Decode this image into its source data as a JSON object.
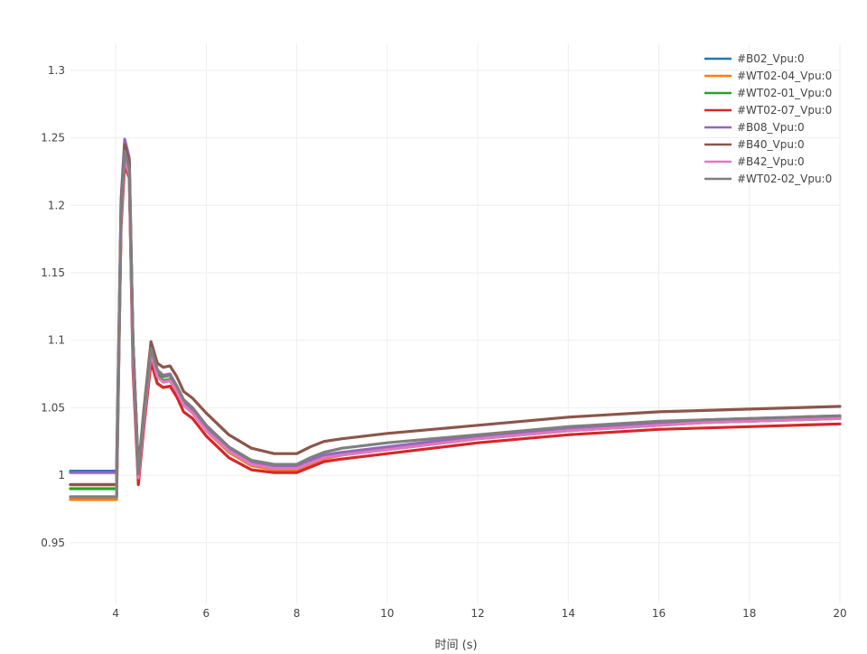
{
  "chart_data": {
    "type": "line",
    "title": "",
    "xlabel": "时间 (s)",
    "ylabel": "",
    "xlim": [
      3,
      20
    ],
    "ylim": [
      0.905,
      1.32
    ],
    "x_ticks": [
      4,
      6,
      8,
      10,
      12,
      14,
      16,
      18,
      20
    ],
    "y_ticks": [
      0.95,
      1,
      1.05,
      1.1,
      1.15,
      1.2,
      1.25,
      1.3
    ],
    "x_tick_labels": [
      "4",
      "6",
      "8",
      "10",
      "12",
      "14",
      "16",
      "18",
      "20"
    ],
    "y_tick_labels": [
      "0.95",
      "1",
      "1.05",
      "1.1",
      "1.15",
      "1.2",
      "1.25",
      "1.3"
    ],
    "grid": true,
    "legend_position": "top-right",
    "x": [
      3.0,
      3.5,
      3.98,
      4.02,
      4.12,
      4.2,
      4.3,
      4.38,
      4.5,
      4.62,
      4.78,
      4.92,
      5.05,
      5.2,
      5.35,
      5.5,
      5.7,
      6.0,
      6.5,
      7.0,
      7.5,
      8.0,
      8.3,
      8.6,
      9.0,
      10.0,
      11.0,
      12.0,
      13.0,
      14.0,
      15.0,
      16.0,
      17.0,
      18.0,
      19.0,
      20.0
    ],
    "series": [
      {
        "name": "#B02_Vpu:0",
        "color": "#1f77b4",
        "values": [
          1.003,
          1.003,
          1.003,
          1.003,
          1.2,
          1.238,
          1.225,
          1.1,
          1.002,
          1.045,
          1.094,
          1.078,
          1.073,
          1.074,
          1.066,
          1.055,
          1.049,
          1.036,
          1.02,
          1.01,
          1.006,
          1.006,
          1.01,
          1.014,
          1.016,
          1.02,
          1.024,
          1.028,
          1.031,
          1.034,
          1.036,
          1.038,
          1.04,
          1.041,
          1.042,
          1.043
        ]
      },
      {
        "name": "#WT02-04_Vpu:0",
        "color": "#ff7f0e",
        "values": [
          0.982,
          0.982,
          0.982,
          0.982,
          1.19,
          1.235,
          1.222,
          1.09,
          0.997,
          1.04,
          1.09,
          1.074,
          1.069,
          1.07,
          1.062,
          1.052,
          1.046,
          1.033,
          1.017,
          1.007,
          1.004,
          1.004,
          1.008,
          1.012,
          1.015,
          1.019,
          1.023,
          1.027,
          1.03,
          1.033,
          1.035,
          1.037,
          1.039,
          1.04,
          1.041,
          1.042
        ]
      },
      {
        "name": "#WT02-01_Vpu:0",
        "color": "#2ca02c",
        "values": [
          0.99,
          0.99,
          0.99,
          0.99,
          1.193,
          1.236,
          1.223,
          1.09,
          0.999,
          1.042,
          1.091,
          1.075,
          1.07,
          1.071,
          1.063,
          1.053,
          1.047,
          1.034,
          1.018,
          1.008,
          1.005,
          1.005,
          1.009,
          1.013,
          1.015,
          1.019,
          1.023,
          1.027,
          1.03,
          1.033,
          1.035,
          1.037,
          1.039,
          1.04,
          1.041,
          1.042
        ]
      },
      {
        "name": "#WT02-07_Vpu:0",
        "color": "#d62728",
        "values": [
          0.993,
          0.993,
          0.993,
          0.993,
          1.185,
          1.23,
          1.22,
          1.08,
          0.993,
          1.035,
          1.084,
          1.068,
          1.065,
          1.066,
          1.058,
          1.047,
          1.042,
          1.029,
          1.013,
          1.004,
          1.002,
          1.002,
          1.006,
          1.01,
          1.012,
          1.016,
          1.02,
          1.024,
          1.027,
          1.03,
          1.032,
          1.034,
          1.035,
          1.036,
          1.037,
          1.038
        ]
      },
      {
        "name": "#B08_Vpu:0",
        "color": "#9467bd",
        "values": [
          1.002,
          1.002,
          1.002,
          1.002,
          1.205,
          1.249,
          1.235,
          1.1,
          1.0,
          1.045,
          1.095,
          1.078,
          1.074,
          1.075,
          1.066,
          1.055,
          1.049,
          1.036,
          1.02,
          1.01,
          1.007,
          1.007,
          1.011,
          1.015,
          1.017,
          1.021,
          1.025,
          1.029,
          1.032,
          1.035,
          1.037,
          1.039,
          1.041,
          1.042,
          1.043,
          1.044
        ]
      },
      {
        "name": "#B40_Vpu:0",
        "color": "#8c564b",
        "values": [
          0.993,
          0.993,
          0.993,
          0.993,
          1.2,
          1.245,
          1.232,
          1.1,
          1.004,
          1.048,
          1.099,
          1.083,
          1.08,
          1.081,
          1.073,
          1.062,
          1.057,
          1.046,
          1.03,
          1.02,
          1.016,
          1.016,
          1.021,
          1.025,
          1.027,
          1.031,
          1.034,
          1.037,
          1.04,
          1.043,
          1.045,
          1.047,
          1.048,
          1.049,
          1.05,
          1.051
        ]
      },
      {
        "name": "#B42_Vpu:0",
        "color": "#e377c2",
        "values": [
          0.984,
          0.984,
          0.984,
          0.984,
          1.19,
          1.235,
          1.222,
          1.09,
          0.998,
          1.04,
          1.09,
          1.073,
          1.069,
          1.07,
          1.062,
          1.052,
          1.046,
          1.033,
          1.018,
          1.008,
          1.005,
          1.005,
          1.009,
          1.013,
          1.015,
          1.019,
          1.023,
          1.027,
          1.03,
          1.033,
          1.035,
          1.037,
          1.039,
          1.04,
          1.041,
          1.042
        ]
      },
      {
        "name": "#WT02-02_Vpu:0",
        "color": "#7f7f7f",
        "values": [
          0.984,
          0.984,
          0.984,
          0.984,
          1.195,
          1.24,
          1.227,
          1.1,
          1.001,
          1.045,
          1.094,
          1.078,
          1.073,
          1.074,
          1.066,
          1.056,
          1.05,
          1.037,
          1.021,
          1.011,
          1.008,
          1.008,
          1.013,
          1.017,
          1.02,
          1.024,
          1.027,
          1.03,
          1.033,
          1.036,
          1.038,
          1.04,
          1.041,
          1.042,
          1.043,
          1.044
        ]
      }
    ]
  }
}
